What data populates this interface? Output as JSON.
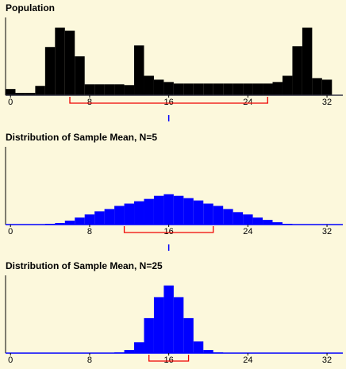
{
  "chart_data": [
    {
      "type": "histogram",
      "title": "Population",
      "color": "#000000",
      "bins": [
        -0.5,
        0.5,
        1.5,
        2.5,
        3.5,
        4.5,
        5.5,
        6.5,
        7.5,
        8.5,
        9.5,
        10.5,
        11.5,
        12.5,
        13.5,
        14.5,
        15.5,
        16.5,
        17.5,
        18.5,
        19.5,
        20.5,
        21.5,
        22.5,
        23.5,
        24.5,
        25.5,
        26.5,
        27.5,
        28.5,
        29.5,
        30.5,
        31.5,
        32.5
      ],
      "values": [
        8,
        3,
        3,
        12,
        62,
        87,
        83,
        50,
        14,
        14,
        14,
        14,
        13,
        64,
        25,
        20,
        17,
        15,
        15,
        15,
        15,
        15,
        15,
        15,
        15,
        15,
        15,
        17,
        25,
        63,
        87,
        22,
        20
      ],
      "xlim": [
        -0.5,
        33.6
      ],
      "ylim": [
        0,
        100
      ],
      "xticks": [
        0,
        8,
        16,
        24,
        32
      ],
      "interval": [
        6,
        26
      ],
      "mean": 16
    },
    {
      "type": "histogram",
      "title": "Distribution of Sample Mean, N=5",
      "color": "#0000ff",
      "bins": [
        3.5,
        4.5,
        5.5,
        6.5,
        7.5,
        8.5,
        9.5,
        10.5,
        11.5,
        12.5,
        13.5,
        14.5,
        15.5,
        16.5,
        17.5,
        18.5,
        19.5,
        20.5,
        21.5,
        22.5,
        23.5,
        24.5,
        25.5,
        26.5,
        27.5,
        28.5
      ],
      "values": [
        1,
        2,
        5,
        9,
        13,
        17,
        20,
        24,
        27,
        30,
        33,
        37,
        39,
        37,
        34,
        31,
        27,
        24,
        20,
        16,
        13,
        9,
        6,
        3,
        1
      ],
      "xlim": [
        -0.5,
        33.6
      ],
      "ylim": [
        0,
        100
      ],
      "xticks": [
        0,
        8,
        16,
        24,
        32
      ],
      "interval": [
        11.5,
        20.5
      ],
      "mean": 16
    },
    {
      "type": "histogram",
      "title": "Distribution of Sample Mean, N=25",
      "color": "#0000ff",
      "bins": [
        10.5,
        11.5,
        12.5,
        13.5,
        14.5,
        15.5,
        16.5,
        17.5,
        18.5,
        19.5,
        20.5,
        21.5
      ],
      "values": [
        1,
        4,
        14,
        45,
        72,
        87,
        72,
        45,
        15,
        4,
        1
      ],
      "xlim": [
        -0.5,
        33.6
      ],
      "ylim": [
        0,
        100
      ],
      "xticks": [
        0,
        8,
        16,
        24,
        32
      ],
      "interval": [
        14,
        18
      ],
      "mean": 16
    }
  ]
}
